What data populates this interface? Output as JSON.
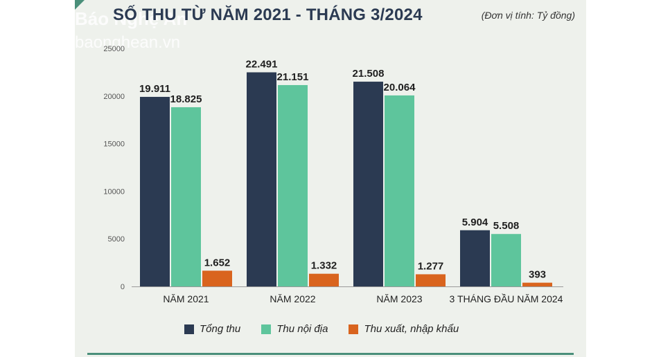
{
  "header": {
    "title": "SỐ THU TỪ NĂM 2021 - THÁNG 3/2024",
    "unit": "(Đơn vị tính: Tỷ đồng)"
  },
  "watermark": {
    "name": "Báo Nghệ An",
    "site": "baonghean.vn"
  },
  "colors": {
    "tong_thu": "#2b3a52",
    "thu_noi_dia": "#5ec59c",
    "thu_xnk": "#d9641e",
    "panel_bg": "#eef1ec",
    "accent": "#4a8f7a"
  },
  "chart_data": {
    "type": "bar",
    "title": "SỐ THU TỪ NĂM 2021 - THÁNG 3/2024",
    "categories": [
      "NĂM 2021",
      "NĂM 2022",
      "NĂM 2023",
      "3 THÁNG ĐẦU NĂM 2024"
    ],
    "ylim": [
      0,
      25000
    ],
    "yticks": [
      0,
      5000,
      10000,
      15000,
      20000,
      25000
    ],
    "grid": false,
    "legend_position": "bottom",
    "series": [
      {
        "name": "Tổng thu",
        "values": [
          19911,
          22491,
          21508,
          5904
        ],
        "labels": [
          "19.911",
          "22.491",
          "21.508",
          "5.904"
        ],
        "color": "#2b3a52"
      },
      {
        "name": "Thu nội địa",
        "values": [
          18825,
          21151,
          20064,
          5508
        ],
        "labels": [
          "18.825",
          "21.151",
          "20.064",
          "5.508"
        ],
        "color": "#5ec59c"
      },
      {
        "name": "Thu xuất, nhập khẩu",
        "values": [
          1652,
          1332,
          1277,
          393
        ],
        "labels": [
          "1.652",
          "1.332",
          "1.277",
          "393"
        ],
        "color": "#d9641e"
      }
    ]
  }
}
